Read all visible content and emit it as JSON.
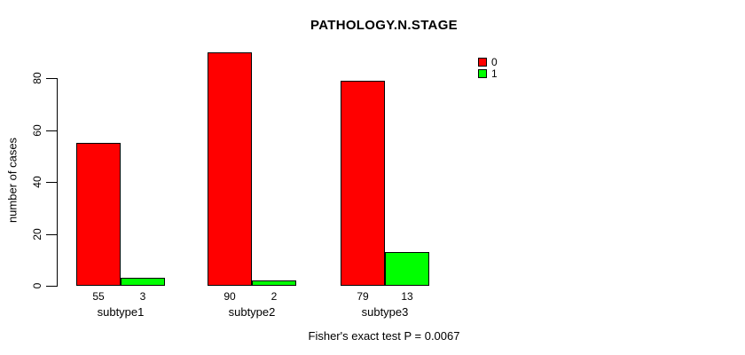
{
  "title": "PATHOLOGY.N.STAGE",
  "y_axis": {
    "label": "number of cases"
  },
  "footer": "Fisher's exact test P = 0.0067",
  "colors": {
    "series0": "#FF0000",
    "series1": "#00FF00",
    "axis": "#000000",
    "background": "#FFFFFF"
  },
  "legend": {
    "entries": [
      {
        "label": "0",
        "color": "#FF0000"
      },
      {
        "label": "1",
        "color": "#00FF00"
      }
    ]
  },
  "chart_data": {
    "type": "bar",
    "title": "PATHOLOGY.N.STAGE",
    "categories": [
      "subtype1",
      "subtype2",
      "subtype3"
    ],
    "series": [
      {
        "name": "0",
        "color": "#FF0000",
        "values": [
          55,
          90,
          79
        ]
      },
      {
        "name": "1",
        "color": "#00FF00",
        "values": [
          3,
          2,
          13
        ]
      }
    ],
    "bar_value_labels": [
      [
        55,
        3
      ],
      [
        90,
        2
      ],
      [
        79,
        13
      ]
    ],
    "xlabel": "",
    "ylabel": "number of cases",
    "yticks": [
      0,
      20,
      40,
      60,
      80
    ],
    "ylim": [
      0,
      80
    ],
    "grid": false,
    "legend_position": "right",
    "annotation": "Fisher's exact test P = 0.0067"
  }
}
